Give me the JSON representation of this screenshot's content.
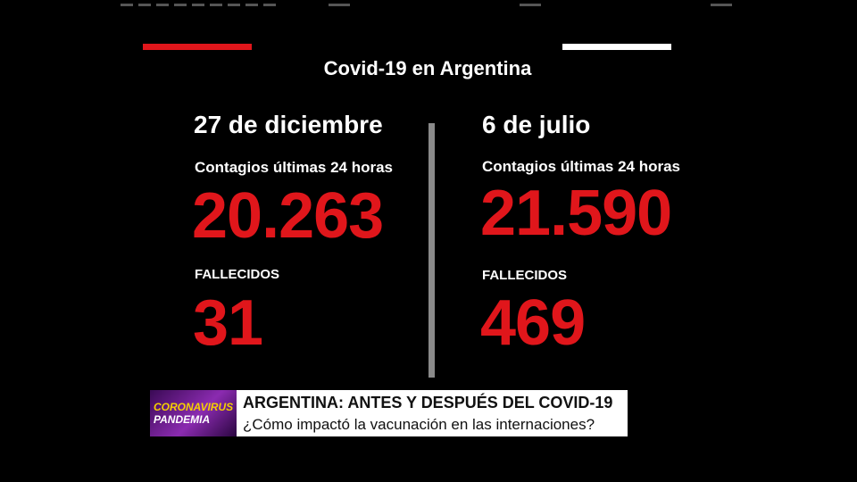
{
  "graphic": {
    "title": "Covid-19 en Argentina",
    "columns": [
      {
        "date": "27 de diciembre",
        "cases_label": "Contagios últimas 24 horas",
        "cases": "20.263",
        "deaths_label": "FALLECIDOS",
        "deaths": "31"
      },
      {
        "date": "6 de julio",
        "cases_label": "Contagios últimas 24 horas",
        "cases": "21.590",
        "deaths_label": "FALLECIDOS",
        "deaths": "469"
      }
    ]
  },
  "lower_third": {
    "logo": [
      "CORONAVIRUS",
      "PANDEMIA"
    ],
    "headline": "ARGENTINA: ANTES Y DESPUÉS DEL COVID-19",
    "subheadline": "¿Cómo impactó la vacunación en las internaciones?"
  }
}
